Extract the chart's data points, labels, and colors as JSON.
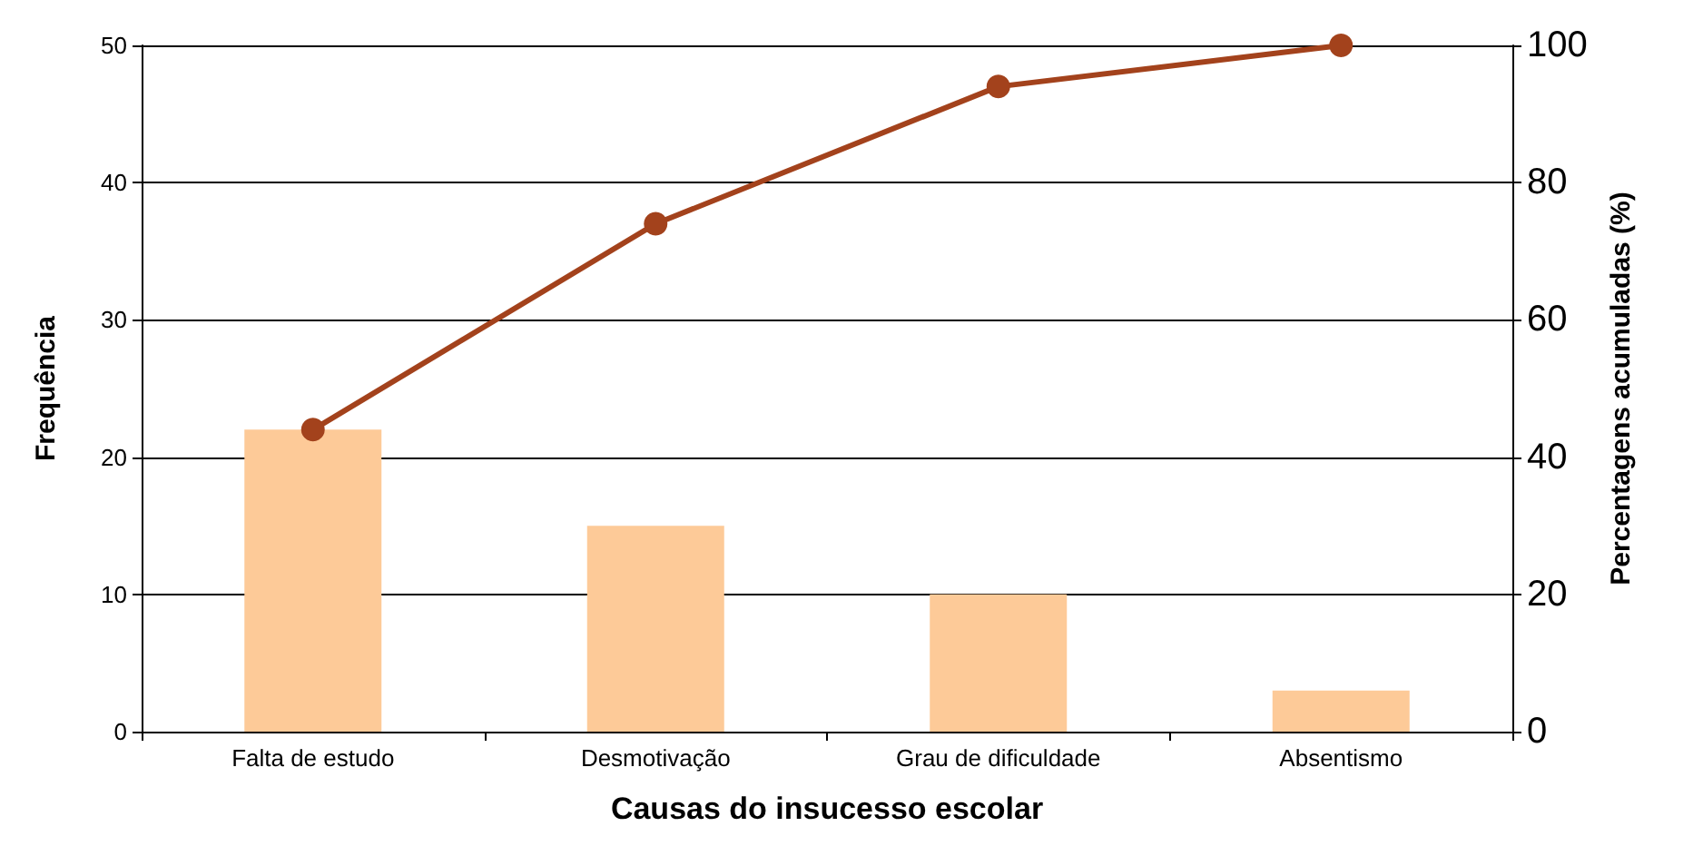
{
  "chart_data": {
    "type": "bar",
    "xlabel": "Causas do insucesso escolar",
    "ylabel": "Frequência",
    "y2label": "Percentagens acumuladas (%)",
    "categories": [
      "Falta de estudo",
      "Desmotivação",
      "Grau de dificuldade",
      "Absentismo"
    ],
    "series": [
      {
        "color": "#fdca98",
        "values": [
          22,
          15,
          10,
          3
        ]
      },
      {
        "type": "line",
        "axis": "y2",
        "color": "#a3421c",
        "marker": "circle",
        "values": [
          44,
          74,
          94,
          100
        ]
      }
    ],
    "ylim": [
      0,
      50
    ],
    "yticks": [
      0,
      10,
      20,
      30,
      40,
      50
    ],
    "y2lim": [
      0,
      100
    ],
    "y2ticks": [
      0,
      20,
      40,
      60,
      80,
      100
    ],
    "grid": "y"
  }
}
